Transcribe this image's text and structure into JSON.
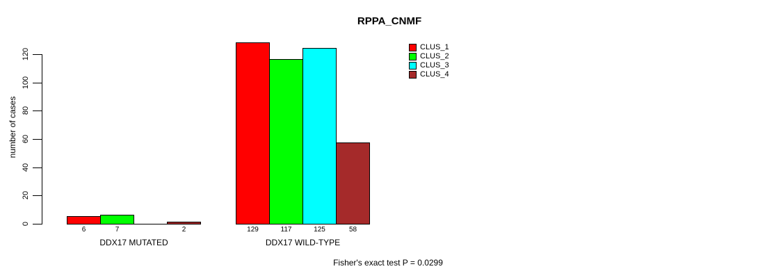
{
  "title": "RPPA_CNMF",
  "footer": "Fisher's exact test P = 0.0299",
  "chart_data": {
    "type": "bar",
    "title": "RPPA_CNMF",
    "xlabel": "",
    "ylabel": "number of cases",
    "ylim": [
      0,
      130
    ],
    "yticks": [
      0,
      20,
      40,
      60,
      80,
      100,
      120
    ],
    "grid": false,
    "legend_position": "top-right",
    "legend": {
      "items": [
        {
          "label": "CLUS_1",
          "color": "#ff0000"
        },
        {
          "label": "CLUS_2",
          "color": "#00ff00"
        },
        {
          "label": "CLUS_3",
          "color": "#00ffff"
        },
        {
          "label": "CLUS_4",
          "color": "#a52a2a"
        }
      ]
    },
    "groups": [
      {
        "label": "DDX17 MUTATED",
        "values": [
          6,
          7,
          0,
          2
        ],
        "bar_labels": [
          "6",
          "7",
          "",
          "2"
        ]
      },
      {
        "label": "DDX17 WILD-TYPE",
        "values": [
          129,
          117,
          125,
          58
        ],
        "bar_labels": [
          "129",
          "117",
          "125",
          "58"
        ]
      }
    ],
    "annotation": "Fisher's exact test P = 0.0299"
  }
}
